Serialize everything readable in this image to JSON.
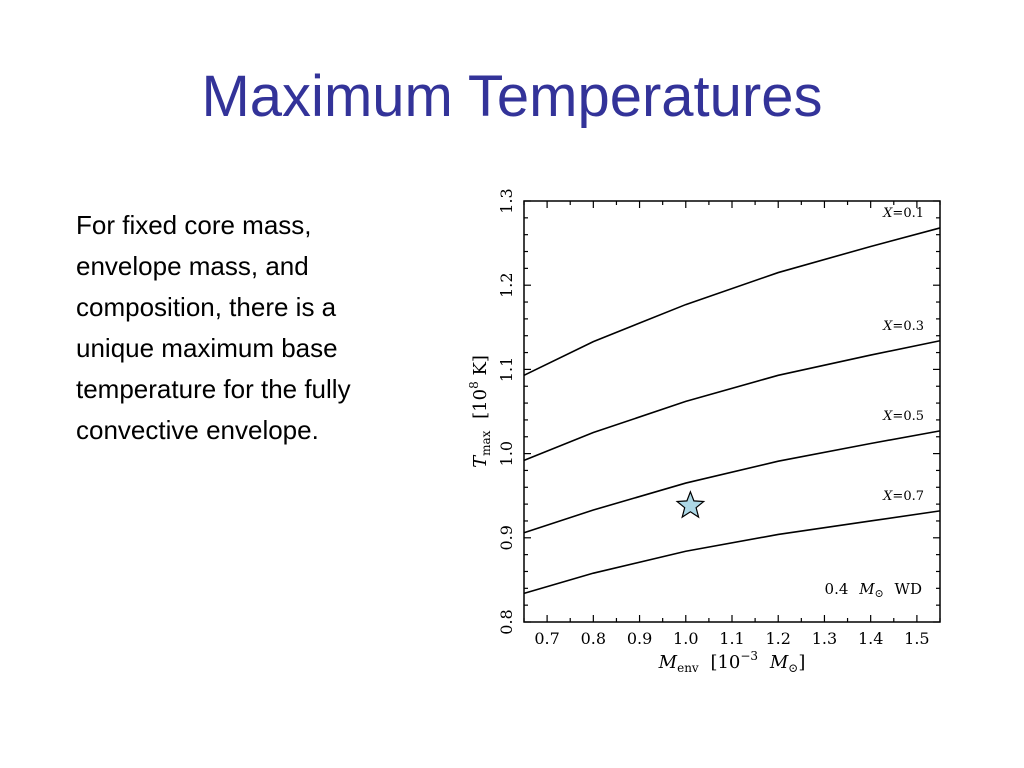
{
  "slide": {
    "title": "Maximum Temperatures",
    "body_lines": [
      "For fixed core mass,",
      "envelope mass, and",
      "composition, there is a",
      "unique maximum base",
      "temperature for the fully",
      "convective envelope."
    ]
  },
  "colors": {
    "title": "#333399",
    "text": "#000000",
    "lines": "#000000",
    "star_fill": "#add8e6"
  },
  "chart_data": {
    "type": "line",
    "xlabel": {
      "symbol": "M",
      "subscript": "env",
      "unit_open": "[10",
      "unit_exp": "−3",
      "unit_mass": "M",
      "unit_mass_sub": "⊙",
      "unit_close": "]"
    },
    "ylabel": {
      "symbol": "T",
      "subscript": "max",
      "unit_open": "[10",
      "unit_exp": "8",
      "unit_close": " K]"
    },
    "xlim": [
      0.65,
      1.55
    ],
    "ylim": [
      0.8,
      1.3
    ],
    "xticks": [
      0.7,
      0.8,
      0.9,
      1.0,
      1.1,
      1.2,
      1.3,
      1.4,
      1.5
    ],
    "xtick_labels": [
      "0.7",
      "0.8",
      "0.9",
      "1.0",
      "1.1",
      "1.2",
      "1.3",
      "1.4",
      "1.5"
    ],
    "yticks": [
      0.8,
      0.9,
      1.0,
      1.1,
      1.2,
      1.3
    ],
    "ytick_labels": [
      "0.8",
      "0.9",
      "1.0",
      "1.1",
      "1.2",
      "1.3"
    ],
    "x": [
      0.65,
      0.8,
      1.0,
      1.2,
      1.4,
      1.55
    ],
    "series": [
      {
        "name": "X=0.1",
        "label_symbol": "X",
        "label_value": "=0.1",
        "values": [
          1.093,
          1.133,
          1.177,
          1.215,
          1.246,
          1.268
        ]
      },
      {
        "name": "X=0.3",
        "label_symbol": "X",
        "label_value": "=0.3",
        "values": [
          0.992,
          1.025,
          1.062,
          1.093,
          1.117,
          1.134
        ]
      },
      {
        "name": "X=0.5",
        "label_symbol": "X",
        "label_value": "=0.5",
        "values": [
          0.906,
          0.933,
          0.965,
          0.991,
          1.012,
          1.027
        ]
      },
      {
        "name": "X=0.7",
        "label_symbol": "X",
        "label_value": "=0.7",
        "values": [
          0.834,
          0.858,
          0.884,
          0.904,
          0.92,
          0.932
        ]
      }
    ],
    "marker": {
      "shape": "star",
      "x": 1.01,
      "y": 0.938
    },
    "annotation": {
      "value": "0.4",
      "symbol": "M",
      "symbol_sub": "⊙",
      "text": "WD"
    },
    "legend": "none",
    "grid": false,
    "minor_ticks": true
  }
}
